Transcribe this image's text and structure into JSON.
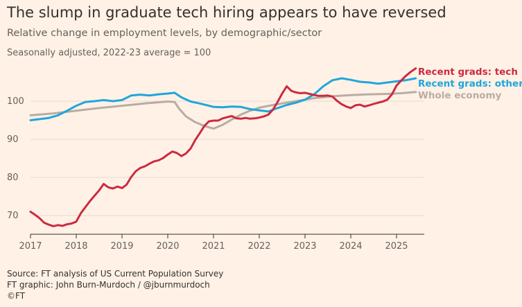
{
  "title": "The slump in graduate tech hiring appears to have reversed",
  "subtitle": "Relative change in employment levels, by demographic/sector",
  "note": "Seasonally adjusted, 2022-23 average = 100",
  "footer": {
    "source": "Source: FT analysis of US Current Population Survey",
    "graphic": "FT graphic: John Burn-Murdoch / @jburnmurdoch",
    "copyright": "©FT"
  },
  "colors": {
    "background": "#FFF1E5",
    "grid": "#E6D9CE",
    "tech": "#CC2A41",
    "other": "#1FA5DC",
    "economy": "#B8ACA3"
  },
  "chart_data": {
    "type": "line",
    "xlim": [
      2017,
      2025.7
    ],
    "ylim": [
      65,
      110
    ],
    "yticks": [
      70,
      80,
      90,
      100
    ],
    "xticks": [
      2017,
      2018,
      2019,
      2020,
      2021,
      2022,
      2023,
      2024,
      2025
    ],
    "grid": true,
    "legend": "direct labels at right end of lines",
    "series": [
      {
        "name": "Recent grads: tech",
        "color": "#CC2A41",
        "x": [
          2017.0,
          2017.1,
          2017.2,
          2017.3,
          2017.4,
          2017.5,
          2017.6,
          2017.7,
          2017.8,
          2017.9,
          2018.0,
          2018.1,
          2018.2,
          2018.3,
          2018.4,
          2018.5,
          2018.6,
          2018.7,
          2018.8,
          2018.9,
          2019.0,
          2019.1,
          2019.2,
          2019.3,
          2019.4,
          2019.5,
          2019.6,
          2019.7,
          2019.8,
          2019.9,
          2020.0,
          2020.1,
          2020.2,
          2020.3,
          2020.4,
          2020.5,
          2020.6,
          2020.7,
          2020.8,
          2020.9,
          2021.0,
          2021.1,
          2021.2,
          2021.3,
          2021.4,
          2021.5,
          2021.6,
          2021.7,
          2021.8,
          2021.9,
          2022.0,
          2022.1,
          2022.2,
          2022.3,
          2022.4,
          2022.5,
          2022.6,
          2022.7,
          2022.8,
          2022.9,
          2023.0,
          2023.1,
          2023.2,
          2023.3,
          2023.4,
          2023.5,
          2023.6,
          2023.7,
          2023.8,
          2023.9,
          2024.0,
          2024.1,
          2024.2,
          2024.3,
          2024.4,
          2024.5,
          2024.6,
          2024.7,
          2024.8,
          2024.9,
          2025.0,
          2025.1,
          2025.2,
          2025.3,
          2025.42
        ],
        "y": [
          71.0,
          70.2,
          69.3,
          68.1,
          67.6,
          67.2,
          67.5,
          67.3,
          67.7,
          67.9,
          68.4,
          70.6,
          72.2,
          73.8,
          75.2,
          76.6,
          78.3,
          77.4,
          77.1,
          77.6,
          77.2,
          78.1,
          80.1,
          81.6,
          82.5,
          82.9,
          83.6,
          84.2,
          84.5,
          85.1,
          86.0,
          86.8,
          86.4,
          85.6,
          86.3,
          87.6,
          89.8,
          91.6,
          93.5,
          94.7,
          94.9,
          94.9,
          95.5,
          95.8,
          96.1,
          95.5,
          95.4,
          95.6,
          95.4,
          95.5,
          95.7,
          96.0,
          96.5,
          97.8,
          99.8,
          102.0,
          103.9,
          102.7,
          102.3,
          102.1,
          102.2,
          101.9,
          101.6,
          101.4,
          101.4,
          101.5,
          101.2,
          100.1,
          99.2,
          98.6,
          98.2,
          98.9,
          99.1,
          98.6,
          98.9,
          99.3,
          99.6,
          99.9,
          100.4,
          101.8,
          104.1,
          105.4,
          106.6,
          107.6,
          108.6
        ]
      },
      {
        "name": "Recent grads: other",
        "color": "#1FA5DC",
        "x": [
          2017.0,
          2017.2,
          2017.4,
          2017.6,
          2017.8,
          2018.0,
          2018.2,
          2018.4,
          2018.6,
          2018.8,
          2019.0,
          2019.2,
          2019.4,
          2019.6,
          2019.8,
          2020.0,
          2020.15,
          2020.3,
          2020.5,
          2020.7,
          2020.9,
          2021.0,
          2021.2,
          2021.4,
          2021.6,
          2021.8,
          2022.0,
          2022.2,
          2022.4,
          2022.6,
          2022.8,
          2023.0,
          2023.2,
          2023.4,
          2023.6,
          2023.8,
          2024.0,
          2024.2,
          2024.4,
          2024.6,
          2024.8,
          2025.0,
          2025.2,
          2025.42
        ],
        "y": [
          95.0,
          95.3,
          95.6,
          96.3,
          97.5,
          98.8,
          99.8,
          100.0,
          100.3,
          100.0,
          100.3,
          101.5,
          101.7,
          101.5,
          101.8,
          102.0,
          102.2,
          101.0,
          99.9,
          99.4,
          98.8,
          98.5,
          98.4,
          98.6,
          98.5,
          97.9,
          97.6,
          97.3,
          98.2,
          99.0,
          99.6,
          100.4,
          101.8,
          103.9,
          105.5,
          106.0,
          105.6,
          105.1,
          104.9,
          104.6,
          104.9,
          105.2,
          105.5,
          106.0
        ]
      },
      {
        "name": "Whole economy",
        "color": "#B8ACA3",
        "x": [
          2017.0,
          2017.5,
          2018.0,
          2018.5,
          2019.0,
          2019.5,
          2019.8,
          2020.0,
          2020.15,
          2020.25,
          2020.4,
          2020.6,
          2020.8,
          2021.0,
          2021.2,
          2021.4,
          2021.6,
          2021.8,
          2022.0,
          2022.3,
          2022.6,
          2022.9,
          2023.2,
          2023.6,
          2024.0,
          2024.4,
          2024.8,
          2025.1,
          2025.42
        ],
        "y": [
          96.3,
          96.8,
          97.5,
          98.2,
          98.8,
          99.4,
          99.7,
          99.9,
          99.8,
          98.0,
          96.0,
          94.5,
          93.5,
          92.8,
          93.8,
          95.2,
          96.5,
          97.5,
          98.3,
          99.0,
          99.6,
          100.2,
          100.8,
          101.3,
          101.6,
          101.8,
          101.9,
          102.1,
          102.4
        ]
      }
    ]
  }
}
